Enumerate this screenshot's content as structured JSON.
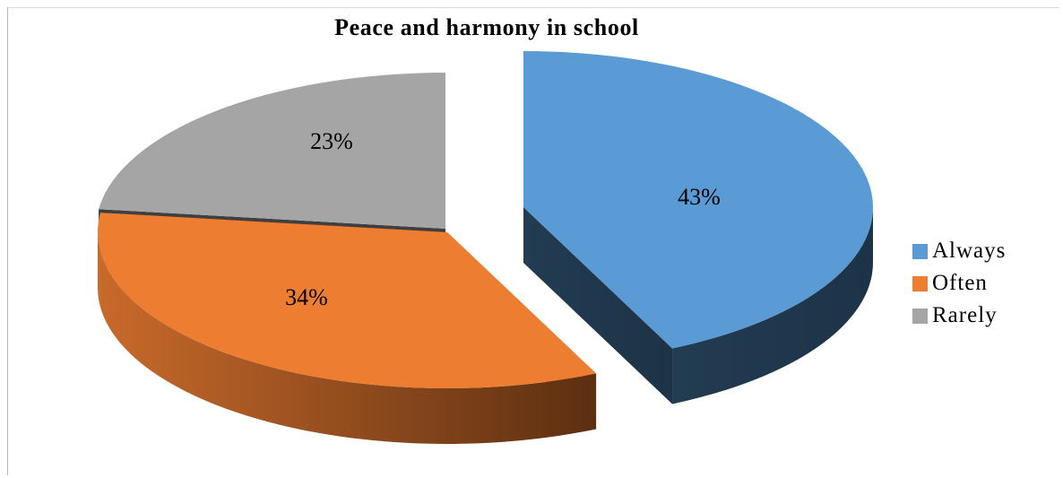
{
  "chart_data": {
    "type": "pie",
    "title": "Peace and harmony in school",
    "categories": [
      "Always",
      "Often",
      "Rarely"
    ],
    "values": [
      43,
      34,
      23
    ],
    "data_labels": [
      "43%",
      "34%",
      "23%"
    ],
    "colors": [
      "#5b9bd5",
      "#ed7d31",
      "#a5a5a5"
    ],
    "legend_position": "right",
    "style": "3d-exploded"
  }
}
